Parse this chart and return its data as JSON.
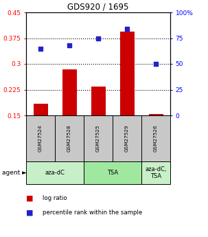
{
  "title": "GDS920 / 1695",
  "samples": [
    "GSM27524",
    "GSM27528",
    "GSM27525",
    "GSM27529",
    "GSM27526"
  ],
  "log_ratio": [
    0.185,
    0.285,
    0.235,
    0.395,
    0.155
  ],
  "percentile_rank": [
    65,
    68,
    75,
    84,
    50
  ],
  "agents": [
    {
      "label": "aza-dC",
      "start": 0,
      "end": 2,
      "color": "#c8f0c8"
    },
    {
      "label": "TSA",
      "start": 2,
      "end": 4,
      "color": "#a0e8a0"
    },
    {
      "label": "aza-dC,\nTSA",
      "start": 4,
      "end": 5,
      "color": "#c8f0c8"
    }
  ],
  "ylim_left": [
    0.15,
    0.45
  ],
  "ylim_right": [
    0,
    100
  ],
  "yticks_left": [
    0.15,
    0.225,
    0.3,
    0.375,
    0.45
  ],
  "ytick_labels_left": [
    "0.15",
    "0.225",
    "0.3",
    "0.375",
    "0.45"
  ],
  "yticks_right": [
    0,
    25,
    50,
    75,
    100
  ],
  "ytick_labels_right": [
    "0",
    "25",
    "50",
    "75",
    "100%"
  ],
  "hlines": [
    0.225,
    0.3,
    0.375
  ],
  "bar_color": "#cc0000",
  "scatter_color": "#2222cc",
  "bar_width": 0.5,
  "background_color": "#ffffff",
  "plot_bg_color": "#ffffff",
  "sample_bg_color": "#c8c8c8",
  "agent_bg_colors": [
    "#b8eeb8",
    "#88dd88",
    "#b8eeb8"
  ]
}
